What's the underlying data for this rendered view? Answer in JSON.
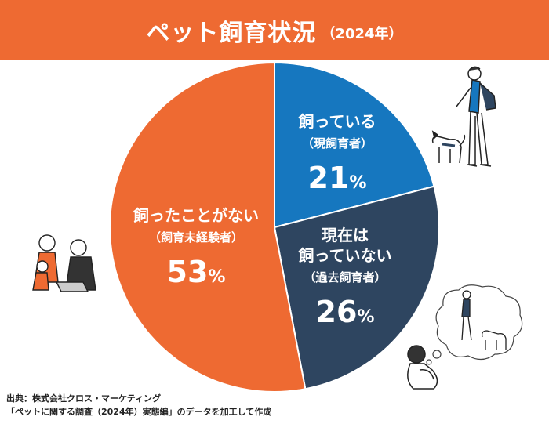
{
  "title": {
    "main": "ペット飼育状況",
    "sub": "（2024年）"
  },
  "chart_data": {
    "type": "pie",
    "title": "ペット飼育状況（2024年）",
    "start_angle_deg": 0,
    "direction": "clockwise",
    "slices": [
      {
        "name": "飼っている（現飼育者）",
        "label_lines": [
          "飼っている",
          "（現飼育者）"
        ],
        "value": 21,
        "value_label": "21",
        "unit": "%",
        "color": "#1677bf"
      },
      {
        "name": "現在は飼っていない（過去飼育者）",
        "label_lines": [
          "現在は",
          "飼っていない",
          "（過去飼育者）"
        ],
        "value": 26,
        "value_label": "26",
        "unit": "%",
        "color": "#2e4560"
      },
      {
        "name": "飼ったことがない（飼育未経験者）",
        "label_lines": [
          "飼ったことがない",
          "（飼育未経験者）"
        ],
        "value": 53,
        "value_label": "53",
        "unit": "%",
        "color": "#ee6a32"
      }
    ]
  },
  "source": {
    "line1": "出典：株式会社クロス・マーケティング",
    "line2": "「ペットに関する調査（2024年）実態編」のデータを加工して作成"
  },
  "colors": {
    "banner": "#ee6a32",
    "background": "#ffffff"
  },
  "illustrations": [
    "person-with-dog-icon",
    "sitting-person-dreaming-of-dog-icon",
    "family-with-laptop-icon"
  ]
}
